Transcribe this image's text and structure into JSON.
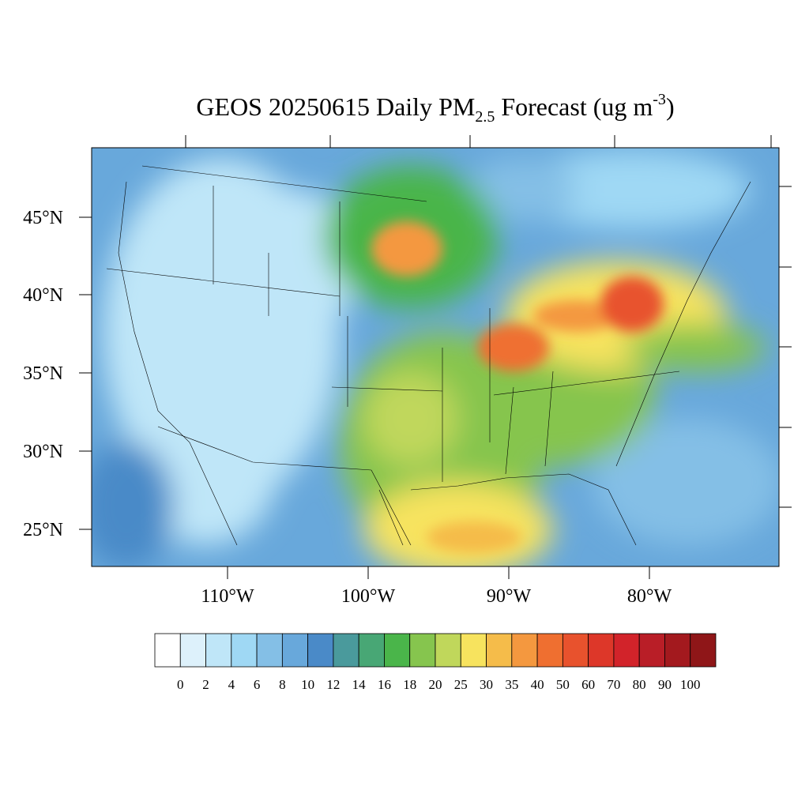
{
  "map": {
    "title_parts": [
      "GEOS 20250615 Daily PM",
      "2.5",
      " Forecast (ug m",
      "-3",
      ")"
    ],
    "lat_labels": [
      "45°N",
      "40°N",
      "35°N",
      "30°N",
      "25°N"
    ],
    "lon_labels": [
      "110°W",
      "100°W",
      "90°W",
      "80°W"
    ],
    "colorbar": {
      "levels": [
        0,
        2,
        4,
        6,
        8,
        10,
        12,
        14,
        16,
        18,
        20,
        25,
        30,
        35,
        40,
        50,
        60,
        70,
        80,
        90,
        100
      ],
      "colors": [
        "#ffffff",
        "#ddf1fb",
        "#bfe6f8",
        "#9fd8f4",
        "#84bfe6",
        "#68a8db",
        "#4a8ac8",
        "#4a9a9c",
        "#48a775",
        "#4ab54a",
        "#86c54e",
        "#c0d75b",
        "#f7e35e",
        "#f5bc4a",
        "#f4983f",
        "#ef6f30",
        "#e8522d",
        "#dd3729",
        "#d2232a",
        "#b91e27",
        "#a3191e",
        "#8f1618"
      ]
    }
  }
}
